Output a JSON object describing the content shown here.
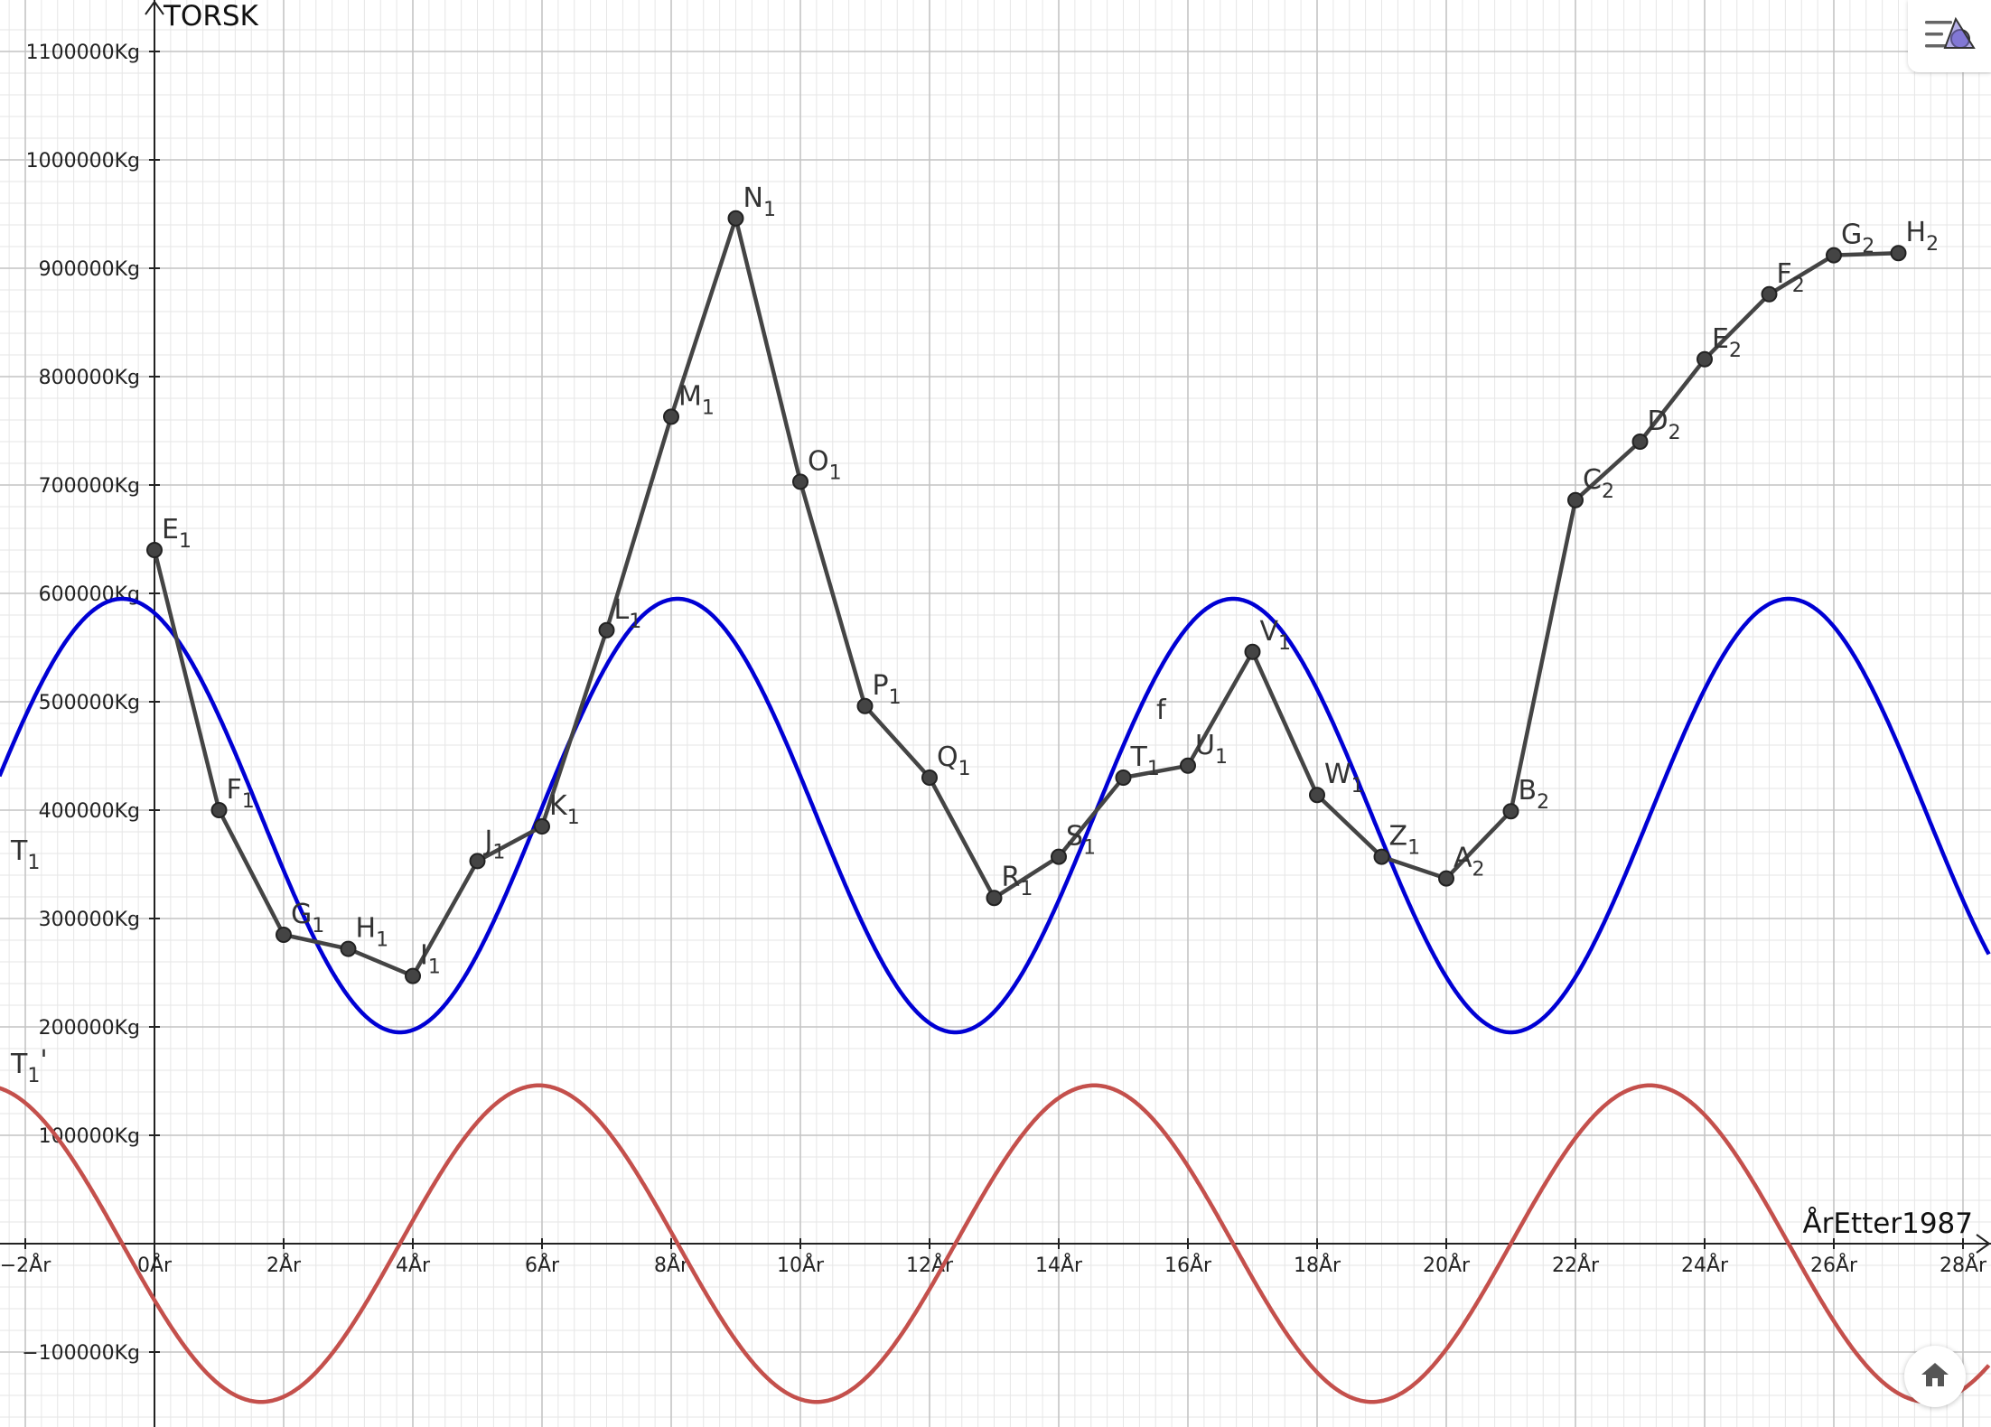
{
  "colors": {
    "background": "#ffffff",
    "grid_minor": "#e6e6e6",
    "grid_major": "#c4c4c4",
    "axis": "#222222",
    "polyline": "#444444",
    "point_fill": "#444444",
    "T1": "#0000d4",
    "T1_derivative": "#c4504c"
  },
  "icons": {
    "style_bar": "graphics-style-bar-icon",
    "home": "home-icon"
  },
  "chart_data": {
    "type": "line",
    "title": "",
    "xlabel": "ÅrEtter1987",
    "ylabel": "TORSK",
    "xlim": [
      -2.4,
      28.4
    ],
    "ylim": [
      -170000,
      1130000
    ],
    "grid": "on",
    "x_ticks": [
      -2,
      0,
      2,
      4,
      6,
      8,
      10,
      12,
      14,
      16,
      18,
      20,
      22,
      24,
      26,
      28
    ],
    "x_tick_labels": [
      "−2År",
      "0År",
      "2År",
      "4År",
      "6År",
      "8År",
      "10År",
      "12År",
      "14År",
      "16År",
      "18År",
      "20År",
      "22År",
      "24År",
      "26År",
      "28År"
    ],
    "y_ticks": [
      -100000,
      100000,
      200000,
      300000,
      400000,
      500000,
      600000,
      700000,
      800000,
      900000,
      1000000,
      1100000
    ],
    "y_tick_labels": [
      "−100000Kg",
      "100000Kg",
      "200000Kg",
      "300000Kg",
      "400000Kg",
      "500000Kg",
      "600000Kg",
      "700000Kg",
      "800000Kg",
      "900000Kg",
      "1000000Kg",
      "1100000Kg"
    ],
    "points": [
      {
        "letter": "E",
        "sub": "1",
        "x": 0,
        "y": 640000
      },
      {
        "letter": "F",
        "sub": "1",
        "x": 1,
        "y": 400000
      },
      {
        "letter": "G",
        "sub": "1",
        "x": 2,
        "y": 285000
      },
      {
        "letter": "H",
        "sub": "1",
        "x": 3,
        "y": 272000
      },
      {
        "letter": "I",
        "sub": "1",
        "x": 4,
        "y": 247000
      },
      {
        "letter": "J",
        "sub": "1",
        "x": 5,
        "y": 353000
      },
      {
        "letter": "K",
        "sub": "1",
        "x": 6,
        "y": 385000
      },
      {
        "letter": "L",
        "sub": "1",
        "x": 7,
        "y": 566000
      },
      {
        "letter": "M",
        "sub": "1",
        "x": 8,
        "y": 763000
      },
      {
        "letter": "N",
        "sub": "1",
        "x": 9,
        "y": 946000
      },
      {
        "letter": "O",
        "sub": "1",
        "x": 10,
        "y": 703000
      },
      {
        "letter": "P",
        "sub": "1",
        "x": 11,
        "y": 496000
      },
      {
        "letter": "Q",
        "sub": "1",
        "x": 12,
        "y": 430000
      },
      {
        "letter": "R",
        "sub": "1",
        "x": 13,
        "y": 319000
      },
      {
        "letter": "S",
        "sub": "1",
        "x": 14,
        "y": 357000
      },
      {
        "letter": "T",
        "sub": "1",
        "x": 15,
        "y": 430000
      },
      {
        "letter": "U",
        "sub": "1",
        "x": 16,
        "y": 441000
      },
      {
        "letter": "V",
        "sub": "1",
        "x": 17,
        "y": 546000
      },
      {
        "letter": "W",
        "sub": "1",
        "x": 18,
        "y": 414000
      },
      {
        "letter": "Z",
        "sub": "1",
        "x": 19,
        "y": 357000
      },
      {
        "letter": "A",
        "sub": "2",
        "x": 20,
        "y": 337000
      },
      {
        "letter": "B",
        "sub": "2",
        "x": 21,
        "y": 399000
      },
      {
        "letter": "C",
        "sub": "2",
        "x": 22,
        "y": 686000
      },
      {
        "letter": "D",
        "sub": "2",
        "x": 23,
        "y": 740000
      },
      {
        "letter": "E",
        "sub": "2",
        "x": 24,
        "y": 816000
      },
      {
        "letter": "F",
        "sub": "2",
        "x": 25,
        "y": 876000
      },
      {
        "letter": "G",
        "sub": "2",
        "x": 26,
        "y": 912000
      },
      {
        "letter": "H",
        "sub": "2",
        "x": 27,
        "y": 914000
      }
    ],
    "polyline_label": "f",
    "series": [
      {
        "name": "T",
        "sub": "1",
        "prime": "",
        "kind": "sinusoid",
        "amplitude": 200000,
        "midline": 395000,
        "period": 8.6,
        "peak_x": -0.5
      },
      {
        "name": "T",
        "sub": "1",
        "prime": "'",
        "kind": "derivative",
        "amplitude": 146000,
        "midline": 0,
        "period": 8.6,
        "peak_x": -0.5
      }
    ]
  }
}
